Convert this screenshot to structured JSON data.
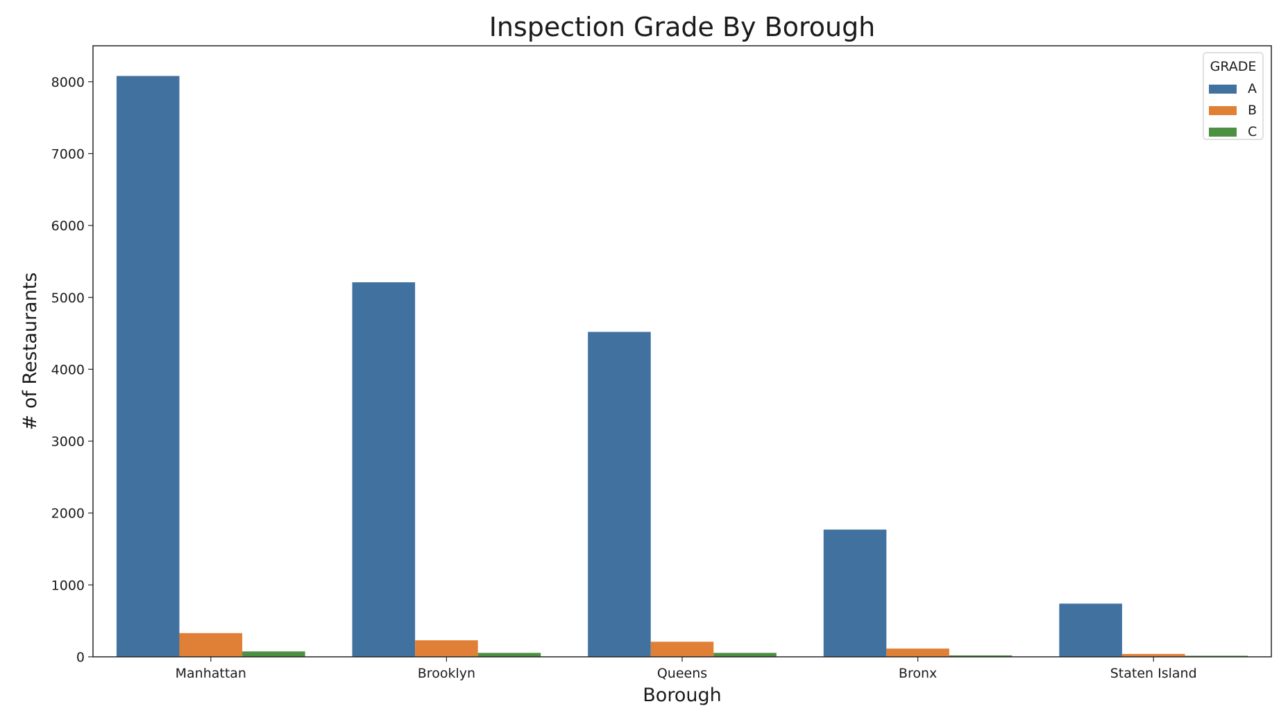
{
  "chart_data": {
    "type": "bar",
    "title": "Inspection Grade By Borough",
    "xlabel": "Borough",
    "ylabel": "# of Restaurants",
    "categories": [
      "Manhattan",
      "Brooklyn",
      "Queens",
      "Bronx",
      "Staten Island"
    ],
    "series": [
      {
        "name": "A",
        "color": "#41729f",
        "values": [
          8080,
          5210,
          4520,
          1770,
          740
        ]
      },
      {
        "name": "B",
        "color": "#e08036",
        "values": [
          330,
          230,
          210,
          115,
          40
        ]
      },
      {
        "name": "C",
        "color": "#4b9141",
        "values": [
          75,
          55,
          55,
          20,
          15
        ]
      }
    ],
    "ylim": [
      0,
      8500
    ],
    "yticks": [
      0,
      1000,
      2000,
      3000,
      4000,
      5000,
      6000,
      7000,
      8000
    ],
    "grid": false,
    "legend": {
      "title": "GRADE",
      "position": "top-right"
    }
  }
}
